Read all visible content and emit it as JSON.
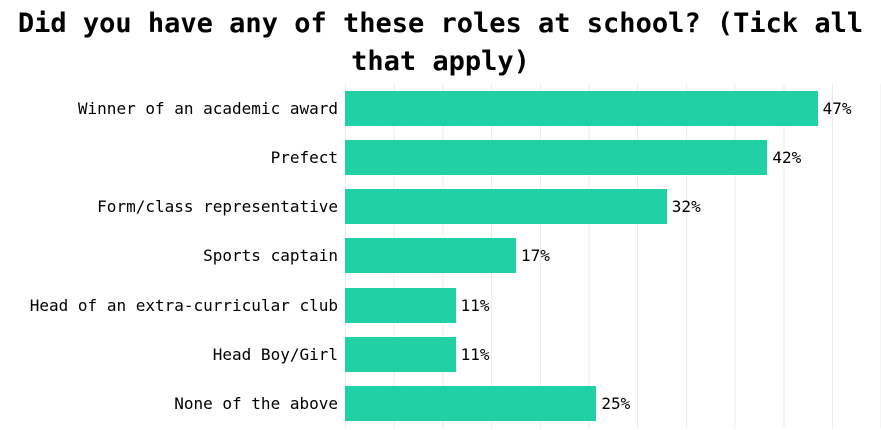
{
  "chart_data": {
    "type": "bar",
    "orientation": "horizontal",
    "title": "Did you have any of these roles at school? (Tick all that apply)",
    "categories": [
      "Winner of an academic award",
      "Prefect",
      "Form/class representative",
      "Sports captain",
      "Head of an extra-curricular club",
      "Head Boy/Girl",
      "None of the above"
    ],
    "values": [
      47,
      42,
      32,
      17,
      11,
      11,
      25
    ],
    "value_labels": [
      "47%",
      "42%",
      "32%",
      "17%",
      "11%",
      "11%",
      "25%"
    ],
    "xlabel": "",
    "ylabel": "",
    "xlim": [
      0,
      53.3
    ],
    "grid": true,
    "legend": false,
    "bar_color": "#21d0a5",
    "gridline_color": "#ebebeb",
    "background_color": "#ffffff",
    "text_color": "#000000"
  }
}
